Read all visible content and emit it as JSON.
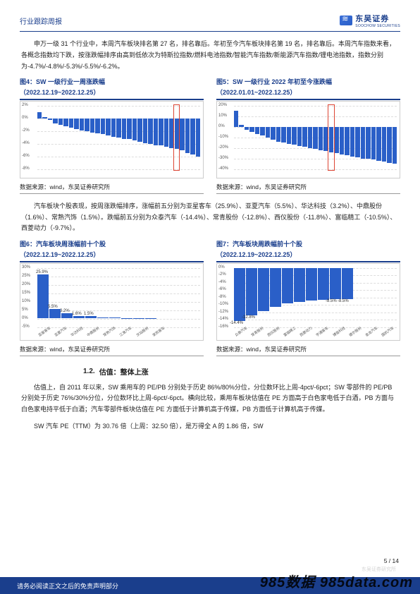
{
  "header": {
    "title": "行业跟踪周报",
    "brand_cn": "东吴证券",
    "brand_en": "SOOCHOW SECURITIES"
  },
  "colors": {
    "brand": "#1a3e8c",
    "bar": "#2a5fc8",
    "accent_box": "#d43",
    "text": "#222222",
    "grid": "#dddddd",
    "panel_border": "#cccccc"
  },
  "para1": "申万一级 31 个行业中，本周汽车板块排名第 27 名，排名靠后。年初至今汽车板块排名第 19 名，排名靠后。本周汽车指数来看，各概念指数均下跌，按涨跌幅排序由高到低依次为特斯拉指数/燃料电池指数/智能汽车指数/新能源汽车指数/锂电池指数，指数分别为-4.7%/-4.8%/-5.3%/-5.5%/-6.2%。",
  "fig4": {
    "title": "图4：SW 一级行业一周涨跌幅",
    "subtitle": "（2022.12.19~2022.12.25）",
    "type": "bar",
    "ylim": [
      -8,
      2
    ],
    "ytick_step": 2,
    "yticks": [
      "2%",
      "0%",
      "-2%",
      "-4%",
      "-6%",
      "-8%"
    ],
    "values": [
      1.0,
      0.2,
      -0.3,
      -0.8,
      -1.0,
      -1.3,
      -1.5,
      -1.7,
      -1.9,
      -2.0,
      -2.2,
      -2.4,
      -2.5,
      -2.7,
      -2.9,
      -3.0,
      -3.2,
      -3.3,
      -3.5,
      -3.7,
      -3.9,
      -4.0,
      -4.2,
      -4.3,
      -4.5,
      -4.7,
      -4.8,
      -5.0,
      -5.5,
      -5.7,
      -6.0
    ],
    "highlight_index": 26,
    "bar_color": "#2a5fc8",
    "bg": "#ffffff",
    "source": "数据来源：wind，东吴证券研究所"
  },
  "fig5": {
    "title": "图5：SW 一级行业 2022 年初至今涨跌幅",
    "subtitle": "（2022.01.01~2022.12.25）",
    "type": "bar",
    "ylim": [
      -40,
      20
    ],
    "ytick_step": 10,
    "yticks": [
      "20%",
      "10%",
      "0%",
      "-10%",
      "-20%",
      "-30%",
      "-40%"
    ],
    "values": [
      15,
      2,
      -3,
      -5,
      -7,
      -8,
      -10,
      -12,
      -14,
      -15,
      -16,
      -17,
      -18,
      -19,
      -20,
      -21,
      -22,
      -23,
      -24,
      -25,
      -26,
      -27,
      -28,
      -29,
      -30,
      -30,
      -31,
      -32,
      -33,
      -34,
      -35
    ],
    "highlight_index": 18,
    "bar_color": "#2a5fc8",
    "bg": "#ffffff",
    "source": "数据来源：wind，东吴证券研究所"
  },
  "para2": "汽车板块个股表现，按周涨跌幅排序，涨幅前五分别为亚星客车（25.9%）、亚夏汽车（5.5%）、华达科技（3.2%）、中鼎股份（1.6%）、常熟汽饰（1.5%）。跌幅前五分别为众泰汽车（-14.4%）、常青股份（-12.8%）、西仪股份（-11.8%）、富临精工（-10.5%）、西菱动力（-9.7%）。",
  "fig6": {
    "title": "图6：汽车板块周涨幅前十个股",
    "subtitle": "（2022.12.19~2022.12.25）",
    "type": "bar",
    "ylim": [
      -5,
      30
    ],
    "ytick_step": 5,
    "yticks": [
      "30%",
      "25%",
      "20%",
      "15%",
      "10%",
      "5%",
      "0%",
      "-5%"
    ],
    "categories": [
      "亚星客车",
      "亚夏汽车",
      "华达科技",
      "中鼎股份",
      "常熟汽饰",
      "江淮汽车",
      "文灿股份",
      "安凯客车",
      "",
      "​"
    ],
    "values": [
      25.9,
      5.5,
      3.2,
      1.6,
      1.5,
      0.8,
      0.5,
      0.3,
      0.2,
      0.1
    ],
    "value_labels": [
      "25.9%",
      "5.5%",
      "3.2%",
      "1.6%",
      "1.5%",
      "",
      "",
      "",
      "",
      ""
    ],
    "bar_color": "#2a5fc8",
    "source": "数据来源：wind，东吴证券研究所"
  },
  "fig7": {
    "title": "图7：汽车板块周跌幅前十个股",
    "subtitle": "（2022.12.19~2022.12.25）",
    "type": "bar",
    "ylim": [
      -16,
      0
    ],
    "ytick_step": 2,
    "yticks": [
      "0%",
      "-2%",
      "-4%",
      "-6%",
      "-8%",
      "-10%",
      "-12%",
      "-14%",
      "-16%"
    ],
    "categories": [
      "众泰汽车",
      "常青股份",
      "西仪股份",
      "富临精工",
      "西菱动力",
      "宇通客车",
      "博俊科技",
      "德尔股份",
      "金龙汽车",
      "国机汽车"
    ],
    "values": [
      -14.4,
      -12.8,
      -11.8,
      -10.5,
      -9.7,
      -9.2,
      -8.8,
      -8.6,
      -8.5,
      -8.5
    ],
    "value_labels": [
      "-14.4%",
      "-12.8%",
      "",
      "",
      "",
      "",
      "",
      "",
      "-8.5%",
      "-8.5%"
    ],
    "bar_color": "#2a5fc8",
    "source": "数据来源：wind，东吴证券研究所"
  },
  "section": {
    "num": "1.2.",
    "title": "估值：整体上涨"
  },
  "para3": "估值上，自 2011 年以来，SW 乘用车的 PE/PB 分别处于历史 86%/80%分位，分位数环比上周-4pct/-6pct；SW 零部件的 PE/PB 分别处于历史 76%/30%分位，分位数环比上周-6pct/-6pct。横向比较，乘用车板块估值在 PE 方面高于白色家电低于白酒，PB 方面与白色家电持平低于白酒；汽车零部件板块估值在 PE 方面低于计算机高于传媒，PB 方面低于计算机高于传媒。",
  "para4": "SW 汽车 PE（TTM）为 30.76 倍（上周：32.50 倍），是万得全 A 的 1.86 倍，SW",
  "pagenum": "5 / 14",
  "footer": "请务必阅读正文之后的免责声明部分",
  "watermark_right": "东吴证券研究所",
  "watermark_985": "985数据 985data.com"
}
